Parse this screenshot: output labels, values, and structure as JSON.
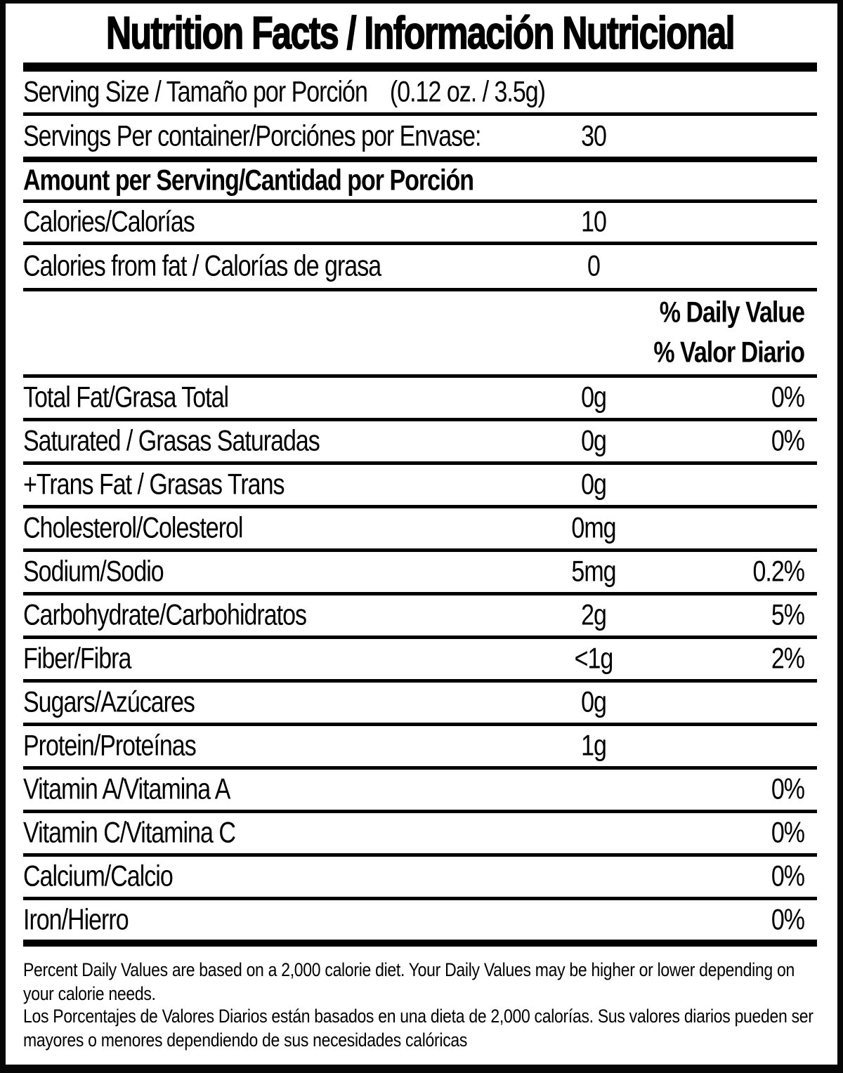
{
  "header": {
    "title": "Nutrition Facts / Información Nutricional",
    "serving_size_label": "Serving Size / Tamaño por Porción",
    "serving_size_value": "(0.12 oz. / 3.5g)",
    "servings_label": "Servings Per container/Porciónes por Envase:",
    "servings_value": "30",
    "amount_per_serving": "Amount per Serving/Cantidad por Porción",
    "calories_label": "Calories/Calorías",
    "calories_value": "10",
    "calories_from_fat_label": "Calories from fat / Calorías de grasa",
    "calories_from_fat_value": "0",
    "daily_value_en": "% Daily Value",
    "daily_value_es": "% Valor Diario"
  },
  "nutrients": [
    {
      "label": "Total Fat/Grasa Total",
      "amount": "0g",
      "dv": "0%"
    },
    {
      "label": "Saturated / Grasas Saturadas",
      "amount": "0g",
      "dv": "0%"
    },
    {
      "label": "+Trans Fat / Grasas Trans",
      "amount": "0g",
      "dv": ""
    },
    {
      "label": "Cholesterol/Colesterol",
      "amount": "0mg",
      "dv": ""
    },
    {
      "label": "Sodium/Sodio",
      "amount": "5mg",
      "dv": "0.2%"
    },
    {
      "label": "Carbohydrate/Carbohidratos",
      "amount": "2g",
      "dv": "5%"
    },
    {
      "label": "Fiber/Fibra",
      "amount": "<1g",
      "dv": "2%"
    },
    {
      "label": "Sugars/Azúcares",
      "amount": "0g",
      "dv": ""
    },
    {
      "label": "Protein/Proteínas",
      "amount": "1g",
      "dv": ""
    },
    {
      "label": "Vitamin A/Vitamina A",
      "amount": "",
      "dv": "0%"
    },
    {
      "label": "Vitamin C/Vitamina C",
      "amount": "",
      "dv": "0%"
    },
    {
      "label": "Calcium/Calcio",
      "amount": "",
      "dv": "0%"
    },
    {
      "label": "Iron/Hierro",
      "amount": "",
      "dv": "0%"
    }
  ],
  "footnote": {
    "en": "Percent Daily Values are based on a 2,000 calorie diet. Your Daily Values may be higher or lower depending on your calorie needs.",
    "es": "Los Porcentajes de Valores Diarios están basados en una dieta de 2,000 calorías. Sus valores diarios pueden ser mayores o menores dependiendo de sus necesidades calóricas"
  },
  "colors": {
    "frame": "#000000",
    "background": "#ffffff",
    "text": "#000000"
  }
}
